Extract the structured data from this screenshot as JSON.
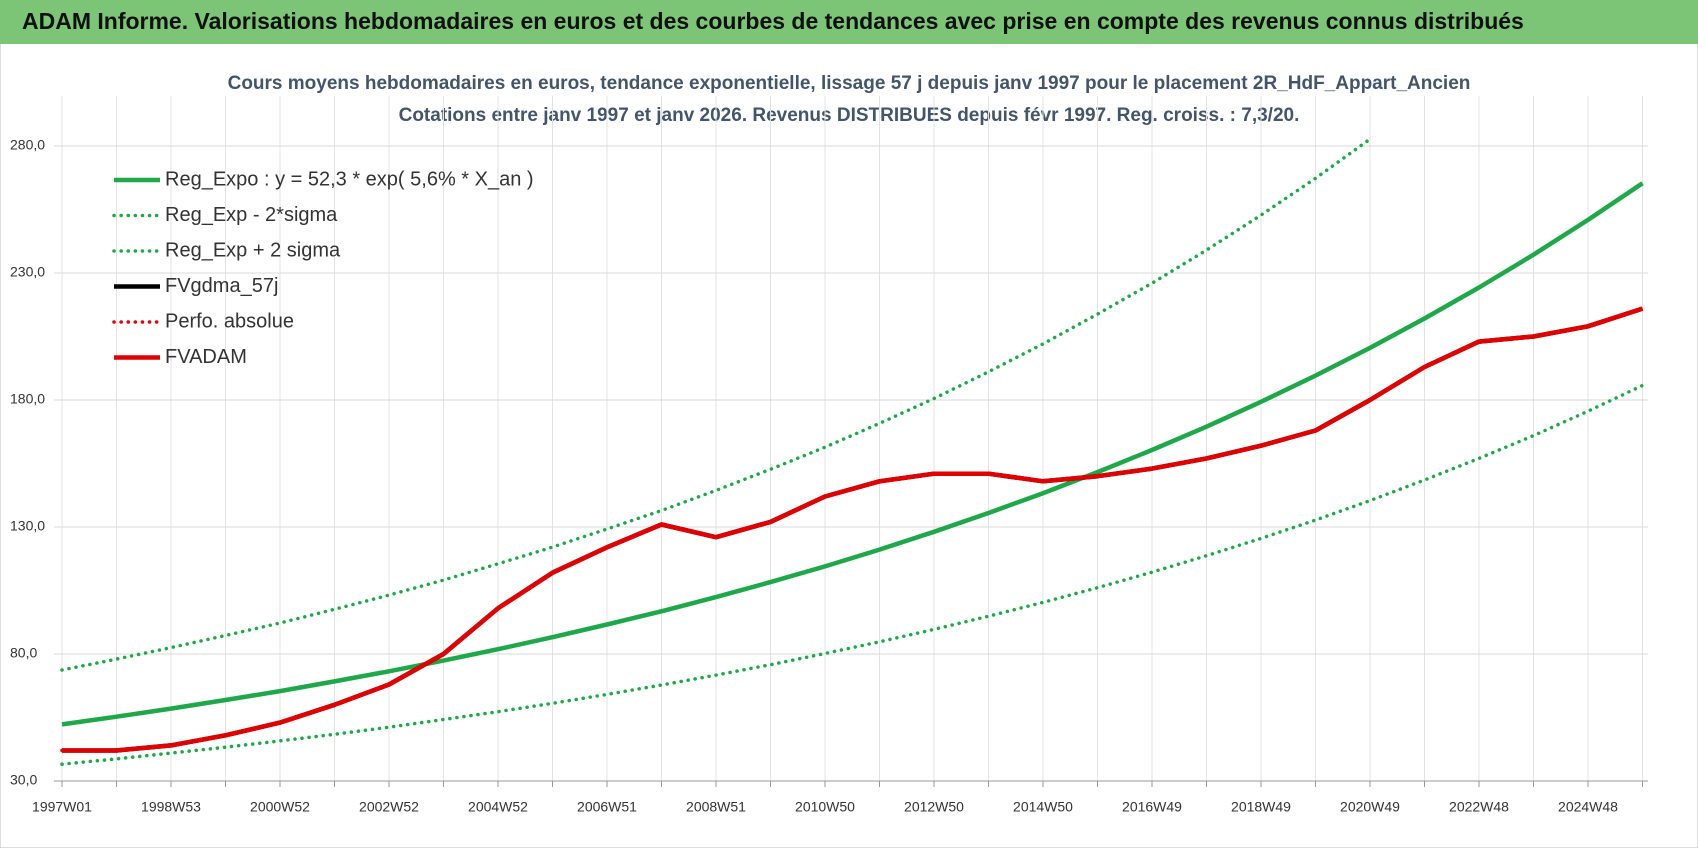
{
  "chart_data": {
    "type": "line",
    "title": "ADAM Informe. Valorisations hebdomadaires en euros et des courbes de tendances avec prise en compte des revenus connus distribués",
    "subtitle": [
      "Cours moyens hebdomadaires en euros, tendance exponentielle, lissage 57 j depuis janv 1997 pour le placement 2R_HdF_Appart_Ancien",
      "Cotations entre janv 1997 et janv 2026. Revenus DISTRIBUES depuis févr 1997. Reg. croiss. : 7,3/20."
    ],
    "categories": [
      "1997W01",
      null,
      "1998W53",
      null,
      "2000W52",
      null,
      "2002W52",
      null,
      "2004W52",
      null,
      "2006W51",
      null,
      "2008W51",
      null,
      "2010W50",
      null,
      "2012W50",
      null,
      "2014W50",
      null,
      "2016W49",
      null,
      "2018W49",
      null,
      "2020W49",
      null,
      "2022W48",
      null,
      "2024W48",
      null
    ],
    "ylim": [
      30,
      290
    ],
    "yticks": [
      {
        "value": 30,
        "label": "30,0"
      },
      {
        "value": 80,
        "label": "80,0"
      },
      {
        "value": 130,
        "label": "130,0"
      },
      {
        "value": 180,
        "label": "180,0"
      },
      {
        "value": 230,
        "label": "230,0"
      },
      {
        "value": 280,
        "label": "280,0"
      }
    ],
    "grid": true,
    "legend": "top-left",
    "series": [
      {
        "name": "Reg_Expo : y = 52,3 * exp( 5,6% *  X_an )",
        "color": "#1fa84a",
        "style": "solid",
        "values": [
          52.3,
          55.3,
          58.5,
          61.9,
          65.4,
          69.2,
          73.2,
          77.4,
          81.9,
          86.6,
          91.6,
          96.8,
          102.4,
          108.3,
          114.5,
          121.1,
          128.1,
          135.5,
          143.3,
          151.6,
          160.3,
          169.5,
          179.3,
          189.6,
          200.5,
          212.1,
          224.3,
          237.2,
          250.9,
          265.3
        ]
      },
      {
        "name": "Reg_Exp - 2*sigma",
        "color": "#1fa84a",
        "style": "dotted",
        "values": [
          36.6,
          38.7,
          41.0,
          43.3,
          45.8,
          48.4,
          51.2,
          54.2,
          57.3,
          60.6,
          64.1,
          67.8,
          71.7,
          75.8,
          80.2,
          84.8,
          89.7,
          94.9,
          100.3,
          106.1,
          112.2,
          118.7,
          125.5,
          132.7,
          140.4,
          148.5,
          157.0,
          166.0,
          175.6,
          185.7
        ]
      },
      {
        "name": "Reg_Exp + 2 sigma",
        "color": "#1fa84a",
        "style": "dotted",
        "values": [
          73.7,
          78.0,
          82.5,
          87.3,
          92.2,
          97.6,
          103.2,
          109.1,
          115.5,
          122.1,
          129.2,
          136.5,
          144.4,
          152.7,
          161.4,
          170.8,
          180.6,
          191.1,
          202.1,
          213.8,
          226.0,
          239.0,
          252.8,
          267.3,
          282.7,
          null,
          null,
          null,
          null,
          null
        ]
      },
      {
        "name": "FVgdma_57j",
        "color": "#000000",
        "style": "solid",
        "values": [
          42,
          42,
          44,
          48,
          53,
          60,
          68,
          80,
          98,
          112,
          122,
          131,
          126,
          132,
          142,
          148,
          151,
          151,
          148,
          150,
          153,
          157,
          162,
          168,
          180,
          193,
          203,
          205,
          209,
          216
        ]
      },
      {
        "name": "Perfo. absolue",
        "color": "#e00000",
        "style": "dotted",
        "values": [
          42,
          42,
          44,
          48,
          53,
          60,
          68,
          80,
          98,
          112,
          122,
          131,
          126,
          132,
          142,
          148,
          151,
          151,
          148,
          150,
          153,
          157,
          162,
          168,
          180,
          193,
          203,
          205,
          209,
          216
        ]
      },
      {
        "name": "FVADAM",
        "color": "#e00000",
        "style": "solid",
        "values": [
          42,
          42,
          44,
          48,
          53,
          60,
          68,
          80,
          98,
          112,
          122,
          131,
          126,
          132,
          142,
          148,
          151,
          151,
          148,
          150,
          153,
          157,
          162,
          168,
          180,
          193,
          203,
          205,
          209,
          216
        ]
      }
    ]
  }
}
